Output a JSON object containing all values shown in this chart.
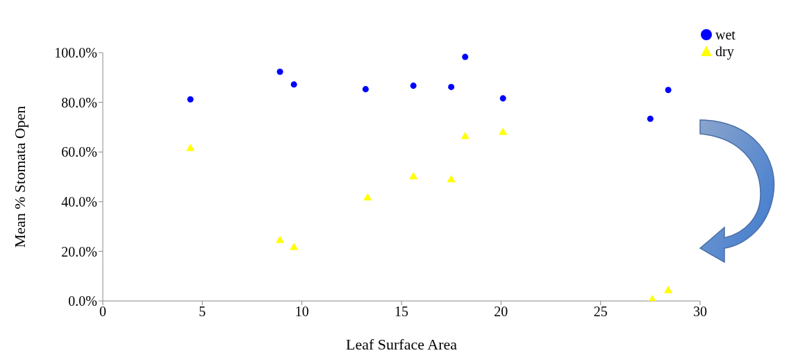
{
  "chart_data": {
    "type": "scatter",
    "xlabel": "Leaf Surface Area",
    "ylabel": "Mean % Stomata Open",
    "xlim": [
      0,
      30
    ],
    "xticks": [
      0,
      5,
      10,
      15,
      20,
      25,
      30
    ],
    "ylim": [
      0,
      100
    ],
    "yticks": [
      {
        "value": 0,
        "label": "0.0%"
      },
      {
        "value": 20,
        "label": "20.0%"
      },
      {
        "value": 40,
        "label": "40.0%"
      },
      {
        "value": 60,
        "label": "60.0%"
      },
      {
        "value": 80,
        "label": "80.0%"
      },
      {
        "value": 100,
        "label": "100.0%"
      }
    ],
    "grid": false,
    "legend": "top right",
    "series": [
      {
        "name": "wet",
        "color": "#0000ff",
        "marker": "circle",
        "x": [
          4.4,
          8.9,
          9.6,
          13.2,
          15.6,
          17.5,
          18.2,
          20.1,
          27.5,
          28.4
        ],
        "values": [
          81.2,
          92.3,
          87.2,
          85.3,
          86.7,
          86.2,
          98.3,
          81.6,
          73.4,
          85.0
        ]
      },
      {
        "name": "dry",
        "color": "#ffff00",
        "marker": "triangle",
        "x": [
          4.4,
          8.9,
          9.6,
          13.3,
          15.6,
          17.5,
          18.2,
          20.1,
          27.6,
          28.4
        ],
        "values": [
          61.4,
          24.4,
          21.5,
          41.5,
          50.0,
          48.8,
          66.2,
          67.9,
          0.5,
          4.1
        ]
      }
    ]
  }
}
